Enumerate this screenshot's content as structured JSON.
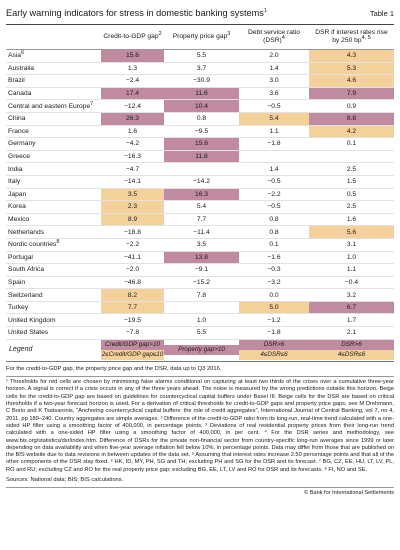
{
  "title": "Early warning indicators for stress in domestic banking systems",
  "title_sup": "1",
  "table_label": "Table 1",
  "headers": [
    {
      "text": "",
      "sup": ""
    },
    {
      "text": "Credit-to-GDP gap",
      "sup": "2"
    },
    {
      "text": "Property price gap",
      "sup": "3"
    },
    {
      "text": "Debt service ratio (DSR)",
      "sup": "4"
    },
    {
      "text": "DSR if interest rates rise by 250 bp",
      "sup": "4, 5"
    }
  ],
  "rows": [
    {
      "name": "Asia",
      "sup": "6",
      "values": [
        "15.6",
        "5.5",
        "2.0",
        "4.3"
      ],
      "shade": [
        "red",
        "",
        "",
        "beige"
      ]
    },
    {
      "name": "Australia",
      "sup": "",
      "values": [
        "1.3",
        "3.7",
        "1.4",
        "5.3"
      ],
      "shade": [
        "",
        "",
        "",
        "beige"
      ]
    },
    {
      "name": "Brazil",
      "sup": "",
      "values": [
        "−2.4",
        "−30.9",
        "3.0",
        "4.6"
      ],
      "shade": [
        "",
        "",
        "",
        "beige"
      ]
    },
    {
      "name": "Canada",
      "sup": "",
      "values": [
        "17.4",
        "11.6",
        "3.6",
        "7.9"
      ],
      "shade": [
        "red",
        "red",
        "",
        "red"
      ]
    },
    {
      "name": "Central and eastern Europe",
      "sup": "7",
      "values": [
        "−12.4",
        "10.4",
        "−0.5",
        "0.9"
      ],
      "shade": [
        "",
        "red",
        "",
        ""
      ]
    },
    {
      "name": "China",
      "sup": "",
      "values": [
        "26.3",
        "0.8",
        "5.4",
        "8.8"
      ],
      "shade": [
        "red",
        "",
        "beige",
        "red"
      ]
    },
    {
      "name": "France",
      "sup": "",
      "values": [
        "1.6",
        "−9.5",
        "1.1",
        "4.2"
      ],
      "shade": [
        "",
        "",
        "",
        "beige"
      ]
    },
    {
      "name": "Germany",
      "sup": "",
      "values": [
        "−4.2",
        "15.6",
        "−1.8",
        "0.1"
      ],
      "shade": [
        "",
        "red",
        "",
        ""
      ]
    },
    {
      "name": "Greece",
      "sup": "",
      "values": [
        "−16.3",
        "11.8",
        "",
        ""
      ],
      "shade": [
        "",
        "red",
        "",
        ""
      ]
    },
    {
      "name": "India",
      "sup": "",
      "values": [
        "−4.7",
        "",
        "1.4",
        "2.5"
      ],
      "shade": [
        "",
        "",
        "",
        ""
      ]
    },
    {
      "name": "Italy",
      "sup": "",
      "values": [
        "−14.1",
        "−14.2",
        "−0.5",
        "1.5"
      ],
      "shade": [
        "",
        "",
        "",
        ""
      ]
    },
    {
      "name": "Japan",
      "sup": "",
      "values": [
        "3.5",
        "16.3",
        "−2.2",
        "0.5"
      ],
      "shade": [
        "beige",
        "red",
        "",
        ""
      ]
    },
    {
      "name": "Korea",
      "sup": "",
      "values": [
        "2.3",
        "5.4",
        "−0.5",
        "2.5"
      ],
      "shade": [
        "beige",
        "",
        "",
        ""
      ]
    },
    {
      "name": "Mexico",
      "sup": "",
      "values": [
        "8.9",
        "7.7",
        "0.8",
        "1.6"
      ],
      "shade": [
        "beige",
        "",
        "",
        ""
      ]
    },
    {
      "name": "Netherlands",
      "sup": "",
      "values": [
        "−18.8",
        "−11.4",
        "0.8",
        "5.6"
      ],
      "shade": [
        "",
        "",
        "",
        "beige"
      ]
    },
    {
      "name": "Nordic countries",
      "sup": "8",
      "values": [
        "−2.2",
        "3.5",
        "0.1",
        "3.1"
      ],
      "shade": [
        "",
        "",
        "",
        ""
      ]
    },
    {
      "name": "Portugal",
      "sup": "",
      "values": [
        "−41.1",
        "13.8",
        "−1.6",
        "1.0"
      ],
      "shade": [
        "",
        "red",
        "",
        ""
      ]
    },
    {
      "name": "South Africa",
      "sup": "",
      "values": [
        "−2.0",
        "−9.1",
        "−0.3",
        "1.1"
      ],
      "shade": [
        "",
        "",
        "",
        ""
      ]
    },
    {
      "name": "Spain",
      "sup": "",
      "values": [
        "−46.8",
        "−15.2",
        "−3.2",
        "−0.4"
      ],
      "shade": [
        "",
        "",
        "",
        ""
      ]
    },
    {
      "name": "Switzerland",
      "sup": "",
      "values": [
        "8.2",
        "7.8",
        "0.0",
        "3.2"
      ],
      "shade": [
        "beige",
        "",
        "",
        ""
      ]
    },
    {
      "name": "Turkey",
      "sup": "",
      "values": [
        "7.7",
        "",
        "5.0",
        "6.7"
      ],
      "shade": [
        "beige",
        "",
        "beige",
        "red"
      ]
    },
    {
      "name": "United Kingdom",
      "sup": "",
      "values": [
        "−19.5",
        "1.0",
        "−1.2",
        "1.7"
      ],
      "shade": [
        "",
        "",
        "",
        ""
      ]
    },
    {
      "name": "United States",
      "sup": "",
      "values": [
        "−7.8",
        "5.5",
        "−1.8",
        "2.1"
      ],
      "shade": [
        "",
        "",
        "",
        ""
      ]
    }
  ],
  "legend": {
    "label": "Legend",
    "items": [
      {
        "top": "Credit/GDP gap>10",
        "bottom": "2≤Credit/GDP gap≤10",
        "top_shade": "red",
        "bottom_shade": "beige"
      },
      {
        "top": "Property gap>10",
        "bottom": "",
        "top_shade": "red",
        "bottom_shade": "white"
      },
      {
        "top": "DSR>6",
        "bottom": "4≤DSR≤6",
        "top_shade": "red",
        "bottom_shade": "beige"
      },
      {
        "top": "DSR>6",
        "bottom": "4≤DSR≤6",
        "top_shade": "red",
        "bottom_shade": "beige"
      }
    ]
  },
  "note": "For the credit-to-GDP gap, the property price gap and the DSR, data up to Q3 2016.",
  "footnotes": [
    "¹ Thresholds for red cells are chosen by minimising false alarms conditional on capturing at least two thirds of the crises over a cumulative three-year horizon. A signal is correct if a crisis occurs in any of the three years ahead. The noise is measured by the wrong predictions outside this horizon. Beige cells for the credit-to-GDP gap are based on guidelines for countercyclical capital buffers under Basel III. Beige cells for the DSR are based on critical thresholds if a two-year forecast horizon is used. For a derivation of critical thresholds for credit-to-GDP gaps and property price gaps, see M Drehmann, C Borio and K Tsatsaronis, “Anchoring countercyclical capital buffers: the role of credit aggregates”, International Journal of Central Banking, vol 7, no 4, 2011, pp 189–240. Country aggregates are simple averages. ² Difference of the credit-to-GDP ratio from its long-run, real-time trend calculated with a one-sided HP filter using a smoothing factor of 400,000, in percentage points. ³ Deviations of real residential property prices from their long-run trend calculated with a one-sided HP filter using a smoothing factor of 400,000, in per cent. ⁴ For the DSR series and methodology, see www.bis.org/statistics/dsr/index.htm. Difference of DSRs for the private non-financial sector from country-specific long-run averages since 1999 or later depending on data availability and when five-year average inflation fell below 10%, in percentage points. Data may differ from those that are published on the BIS website due to data revisions in between updates of the data set. ⁵ Assuming that interest rates increase 2.50 percentage points and that all of the other components of the DSR stay fixed. ⁶ HK, ID, MY, PH, SG and TH; excluding PH and SG for the DSR and its forecast. ⁷ BG, CZ, EE, HU, LT, LV, PL, RO and RU; excluding CZ and RO for the real property price gap; excluding BG, EE, LT, LV and RO for DSR and its forecasts. ⁸ FI, NO and SE."
  ],
  "sources": "Sources: National data; BIS; BIS calculations.",
  "copyright": "© Bank for International Settlements"
}
